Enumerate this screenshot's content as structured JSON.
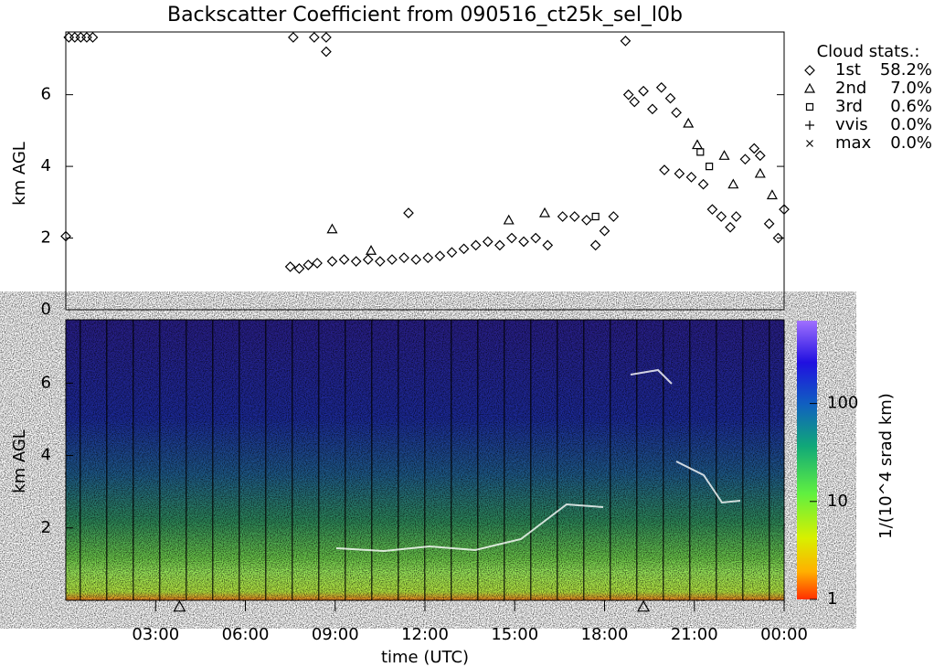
{
  "chart_data": [
    {
      "type": "scatter",
      "title": "Backscatter Coefficient from 090516_ct25k_sel_l0b",
      "y_label": "km AGL",
      "xlim": [
        0,
        24
      ],
      "ylim": [
        0,
        7.75
      ],
      "yticks": [
        0,
        2,
        4,
        6
      ],
      "legend_title": "Cloud stats.:",
      "series": [
        {
          "name": "1st",
          "marker": "diamond",
          "share": 58.2,
          "share_label": "58.2%",
          "x": [
            0.0,
            0.1,
            0.3,
            0.5,
            0.7,
            0.9,
            7.6,
            8.3,
            8.7,
            8.7,
            7.5,
            7.8,
            8.1,
            8.4,
            8.9,
            9.3,
            9.7,
            10.1,
            10.5,
            10.9,
            11.3,
            11.45,
            11.7,
            12.1,
            12.5,
            12.9,
            13.3,
            13.7,
            14.1,
            14.5,
            14.9,
            15.3,
            15.7,
            16.1,
            16.6,
            17.0,
            17.4,
            17.7,
            18.0,
            18.3,
            18.7,
            18.8,
            19.0,
            19.3,
            19.6,
            19.9,
            20.2,
            20.4,
            20.0,
            20.5,
            20.9,
            21.3,
            21.6,
            21.9,
            22.2,
            22.4,
            22.7,
            23.0,
            23.2,
            23.5,
            23.8,
            24.0
          ],
          "values": [
            2.05,
            7.6,
            7.6,
            7.6,
            7.6,
            7.6,
            7.6,
            7.6,
            7.6,
            7.2,
            1.2,
            1.15,
            1.25,
            1.3,
            1.35,
            1.4,
            1.35,
            1.4,
            1.35,
            1.4,
            1.45,
            2.7,
            1.4,
            1.45,
            1.5,
            1.6,
            1.7,
            1.8,
            1.9,
            1.8,
            2.0,
            1.9,
            2.0,
            1.8,
            2.6,
            2.6,
            2.5,
            1.8,
            2.2,
            2.6,
            7.5,
            6.0,
            5.8,
            6.1,
            5.6,
            6.2,
            5.9,
            5.5,
            3.9,
            3.8,
            3.7,
            3.5,
            2.8,
            2.6,
            2.3,
            2.6,
            4.2,
            4.5,
            4.3,
            2.4,
            2.0,
            2.8
          ]
        },
        {
          "name": "2nd",
          "marker": "triangle",
          "share": 7.0,
          "share_label": "7.0%",
          "x": [
            8.9,
            10.2,
            14.8,
            16.0,
            20.8,
            21.1,
            22.0,
            22.3,
            23.2,
            23.6
          ],
          "values": [
            2.25,
            1.65,
            2.5,
            2.7,
            5.2,
            4.6,
            4.3,
            3.5,
            3.8,
            3.2
          ]
        },
        {
          "name": "3rd",
          "marker": "square",
          "share": 0.6,
          "share_label": "0.6%",
          "x": [
            21.2,
            21.5,
            17.7
          ],
          "values": [
            4.4,
            4.0,
            2.6
          ]
        },
        {
          "name": "vvis",
          "marker": "plus",
          "share": 0.0,
          "share_label": "0.0%",
          "x": [],
          "values": []
        },
        {
          "name": "max",
          "marker": "cross",
          "share": 0.0,
          "share_label": "0.0%",
          "x": [],
          "values": []
        }
      ]
    },
    {
      "type": "heatmap",
      "y_label": "km AGL",
      "x_label": "time (UTC)",
      "xlim": [
        0,
        24
      ],
      "ylim": [
        0,
        7.75
      ],
      "yticks": [
        2,
        4,
        6
      ],
      "xticks": [
        {
          "value": 3,
          "label": "03:00"
        },
        {
          "value": 6,
          "label": "06:00"
        },
        {
          "value": 9,
          "label": "09:00"
        },
        {
          "value": 12,
          "label": "12:00"
        },
        {
          "value": 15,
          "label": "15:00"
        },
        {
          "value": 18,
          "label": "18:00"
        },
        {
          "value": 21,
          "label": "21:00"
        },
        {
          "value": 24,
          "label": "00:00"
        }
      ],
      "event_markers_x": [
        3.8,
        19.3
      ],
      "colorbar_label": "1/(10^4 srad km)",
      "clim": [
        1,
        700
      ],
      "color_log": true,
      "cticks": [
        1,
        10,
        100
      ]
    }
  ]
}
